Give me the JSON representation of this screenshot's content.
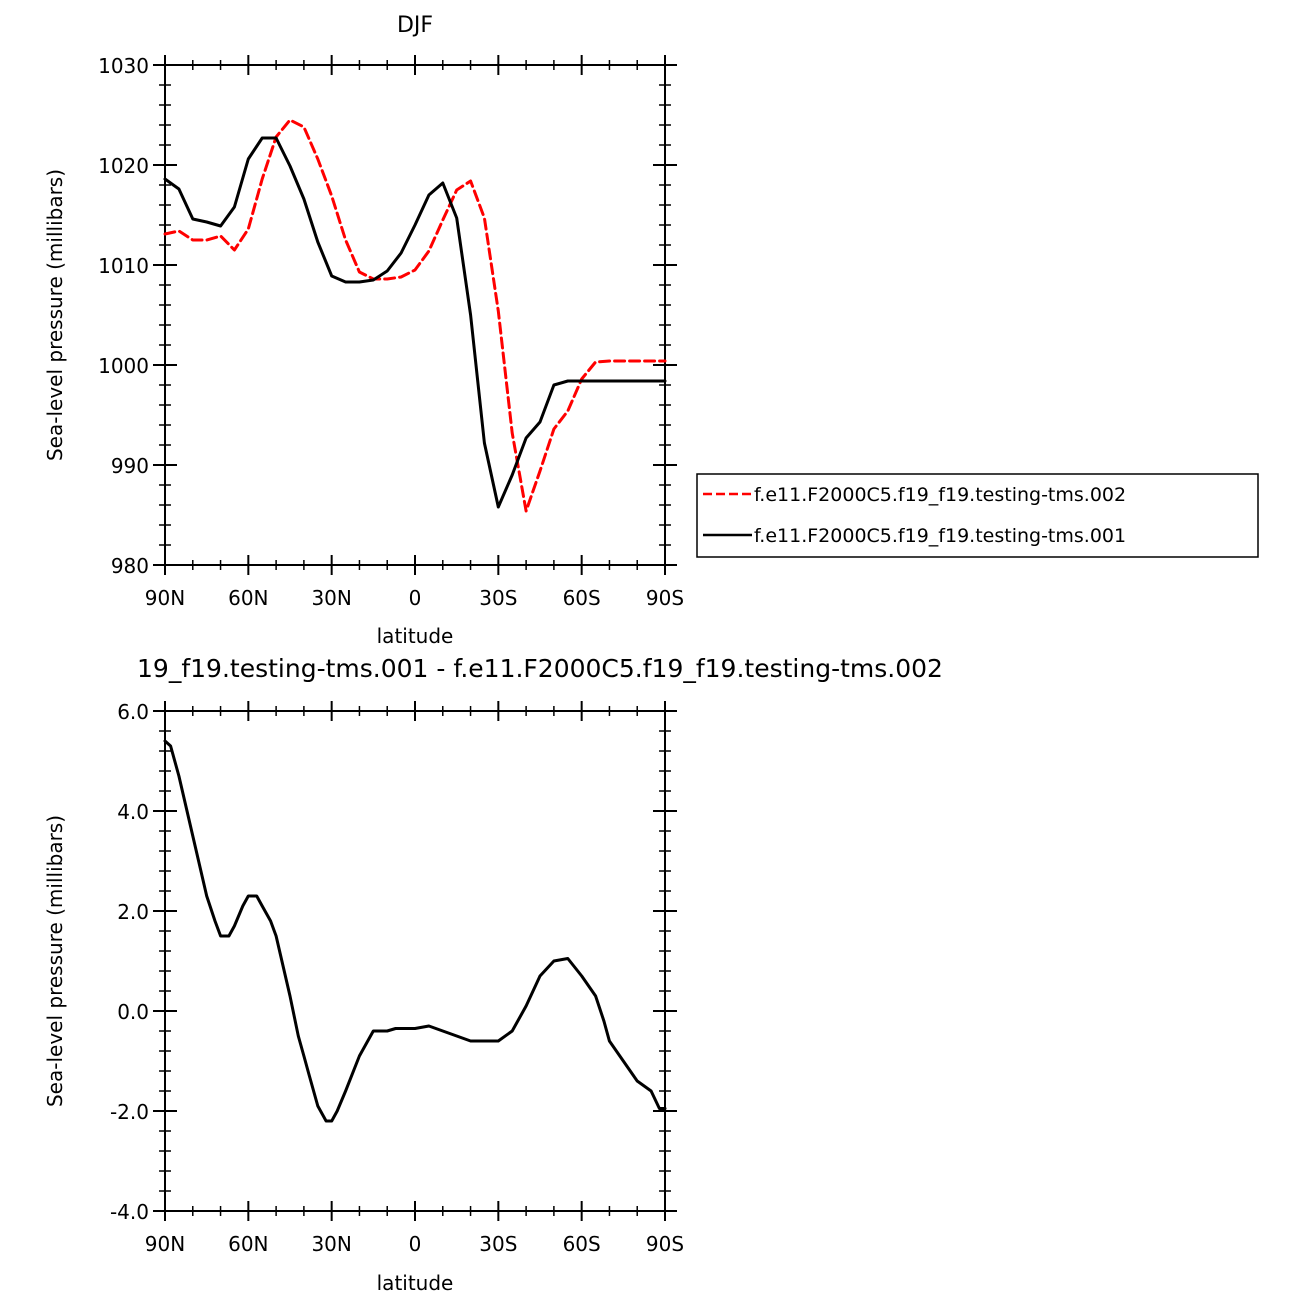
{
  "chart_data": [
    {
      "type": "line",
      "title": "DJF",
      "xlabel": "latitude",
      "ylabel": "Sea-level pressure (millibars)",
      "x_tick_labels": [
        "90N",
        "60N",
        "30N",
        "0",
        "30S",
        "60S",
        "90S"
      ],
      "x_tick_values": [
        90,
        60,
        30,
        0,
        -30,
        -60,
        -90
      ],
      "y_tick_labels": [
        "980",
        "990",
        "1000",
        "1010",
        "1020",
        "1030"
      ],
      "y_tick_values": [
        980,
        990,
        1000,
        1010,
        1020,
        1030
      ],
      "xlim": [
        90,
        -90
      ],
      "ylim": [
        980,
        1030
      ],
      "legend_position": "right",
      "series": [
        {
          "name": "f.e11.F2000C5.f19_f19.testing-tms.002",
          "color": "#ff0000",
          "style": "dashed",
          "x": [
            90,
            85,
            80,
            75,
            70,
            65,
            60,
            55,
            50,
            45,
            40,
            35,
            30,
            25,
            20,
            15,
            10,
            5,
            0,
            -5,
            -10,
            -15,
            -20,
            -25,
            -30,
            -35,
            -40,
            -45,
            -50,
            -55,
            -60,
            -65,
            -70,
            -75,
            -80,
            -85,
            -88,
            -90
          ],
          "values": [
            1013.1,
            1013.4,
            1012.5,
            1012.5,
            1012.9,
            1011.5,
            1013.6,
            1018.6,
            1022.8,
            1024.5,
            1023.8,
            1020.6,
            1016.9,
            1012.5,
            1009.3,
            1008.6,
            1008.6,
            1008.8,
            1009.5,
            1011.4,
            1014.5,
            1017.5,
            1018.4,
            1014.7,
            1005.4,
            993.2,
            985.4,
            989.4,
            993.6,
            995.4,
            998.6,
            1000.3,
            1000.4,
            1000.4,
            1000.4,
            1000.4,
            1000.4,
            1000.4
          ]
        },
        {
          "name": "f.e11.F2000C5.f19_f19.testing-tms.001",
          "color": "#000000",
          "style": "solid",
          "x": [
            90,
            85,
            80,
            75,
            70,
            65,
            60,
            55,
            50,
            45,
            40,
            35,
            30,
            25,
            20,
            15,
            10,
            5,
            0,
            -5,
            -10,
            -15,
            -20,
            -25,
            -30,
            -35,
            -40,
            -45,
            -50,
            -55,
            -60,
            -65,
            -70,
            -75,
            -80,
            -85,
            -88,
            -90
          ],
          "values": [
            1018.6,
            1017.6,
            1014.6,
            1014.3,
            1013.9,
            1015.8,
            1020.6,
            1022.7,
            1022.7,
            1019.9,
            1016.6,
            1012.3,
            1008.9,
            1008.3,
            1008.3,
            1008.5,
            1009.4,
            1011.2,
            1014.0,
            1017.0,
            1018.2,
            1014.7,
            1005.0,
            992.2,
            985.8,
            989.0,
            992.7,
            994.3,
            998.0,
            998.4,
            998.4,
            998.4,
            998.4,
            998.4,
            998.4,
            998.4,
            998.4,
            998.4
          ]
        }
      ]
    },
    {
      "type": "line",
      "title": "19_f19.testing-tms.001 - f.e11.F2000C5.f19_f19.testing-tms.002",
      "xlabel": "latitude",
      "ylabel": "Sea-level pressure (millibars)",
      "x_tick_labels": [
        "90N",
        "60N",
        "30N",
        "0",
        "30S",
        "60S",
        "90S"
      ],
      "x_tick_values": [
        90,
        60,
        30,
        0,
        -30,
        -60,
        -90
      ],
      "y_tick_labels": [
        "-4.0",
        "-2.0",
        "0.0",
        "2.0",
        "4.0",
        "6.0"
      ],
      "y_tick_values": [
        -4,
        -2,
        0,
        2,
        4,
        6
      ],
      "xlim": [
        90,
        -90
      ],
      "ylim": [
        -4,
        6
      ],
      "series": [
        {
          "color": "#000000",
          "style": "solid",
          "x": [
            90,
            88,
            85,
            80,
            75,
            72,
            70,
            67,
            65,
            62,
            60,
            57,
            55,
            52,
            50,
            45,
            42,
            40,
            38,
            35,
            32,
            30,
            28,
            25,
            20,
            15,
            12,
            10,
            7,
            5,
            0,
            -5,
            -10,
            -15,
            -20,
            -25,
            -30,
            -35,
            -40,
            -45,
            -50,
            -55,
            -60,
            -65,
            -68,
            -70,
            -75,
            -80,
            -85,
            -88,
            -90
          ],
          "values": [
            5.4,
            5.3,
            4.7,
            3.5,
            2.3,
            1.8,
            1.5,
            1.5,
            1.7,
            2.1,
            2.3,
            2.3,
            2.1,
            1.8,
            1.5,
            0.3,
            -0.5,
            -0.9,
            -1.3,
            -1.9,
            -2.2,
            -2.2,
            -2.0,
            -1.6,
            -0.9,
            -0.4,
            -0.4,
            -0.4,
            -0.35,
            -0.35,
            -0.35,
            -0.3,
            -0.4,
            -0.5,
            -0.6,
            -0.6,
            -0.6,
            -0.4,
            0.1,
            0.7,
            1.0,
            1.05,
            0.7,
            0.3,
            -0.2,
            -0.6,
            -1.0,
            -1.4,
            -1.6,
            -1.95,
            -1.95
          ]
        }
      ]
    }
  ]
}
